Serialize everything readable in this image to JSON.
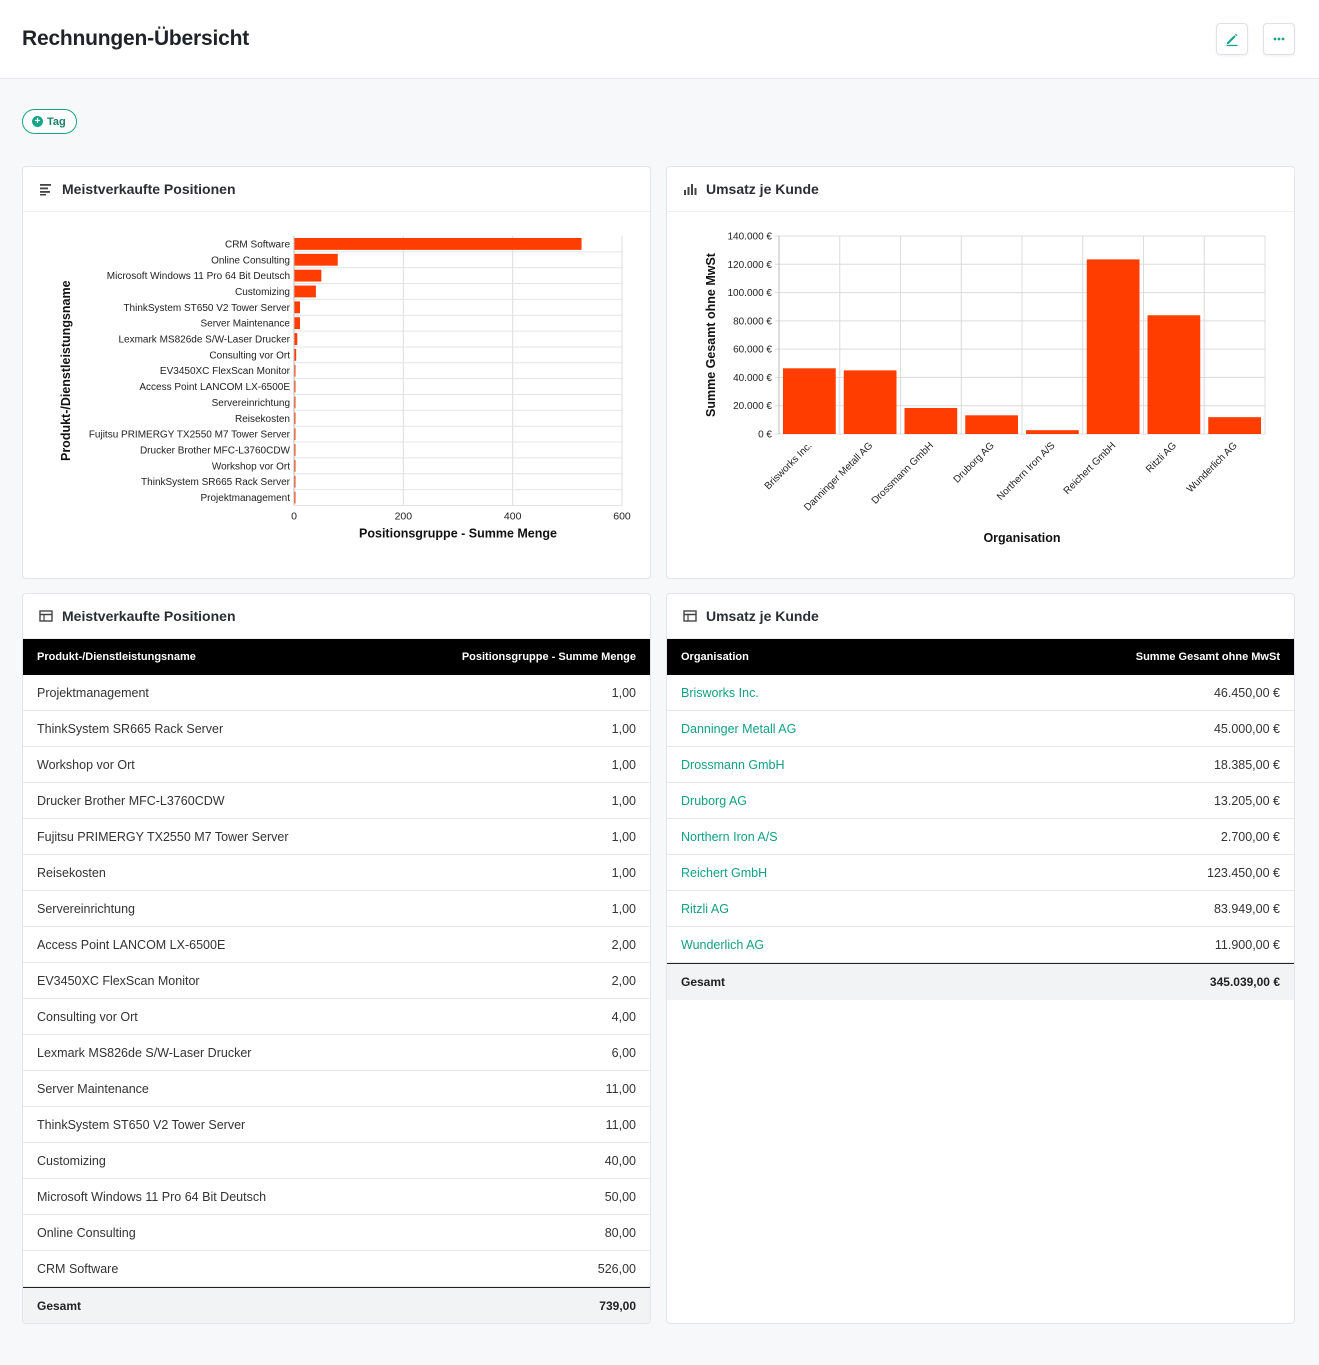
{
  "header": {
    "title": "Rechnungen-Übersicht",
    "edit_icon": "pencil-icon",
    "more_icon": "more-horizontal-icon"
  },
  "tag_button": {
    "label": "Tag",
    "icon": "plus-circle-icon"
  },
  "colors": {
    "accent": "#17a589",
    "bar": "#ff3d00"
  },
  "cards": {
    "top_products_chart": {
      "title": "Meistverkaufte Positionen",
      "icon": "horizontal-bars-icon"
    },
    "revenue_chart": {
      "title": "Umsatz je Kunde",
      "icon": "bar-chart-icon"
    },
    "top_products_table": {
      "title": "Meistverkaufte Positionen",
      "icon": "table-icon"
    },
    "revenue_table": {
      "title": "Umsatz je Kunde",
      "icon": "table-icon"
    }
  },
  "chart_data": [
    {
      "type": "bar",
      "orientation": "horizontal",
      "categories": [
        "CRM Software",
        "Online Consulting",
        "Microsoft Windows 11 Pro 64 Bit Deutsch",
        "Customizing",
        "ThinkSystem ST650 V2 Tower Server",
        "Server Maintenance",
        "Lexmark MS826de S/W-Laser Drucker",
        "Consulting vor Ort",
        "EV3450XC FlexScan Monitor",
        "Access Point LANCOM LX-6500E",
        "Servereinrichtung",
        "Reisekosten",
        "Fujitsu PRIMERGY TX2550 M7 Tower Server",
        "Drucker Brother MFC-L3760CDW",
        "Workshop vor Ort",
        "ThinkSystem SR665 Rack Server",
        "Projektmanagement"
      ],
      "values": [
        526,
        80,
        50,
        40,
        11,
        11,
        6,
        4,
        2,
        2,
        1,
        1,
        1,
        1,
        1,
        1,
        1
      ],
      "xlabel": "Positionsgruppe - Summe Menge",
      "ylabel": "Produkt-/Dienstleistungsname",
      "xlim": [
        0,
        600
      ],
      "xticks": [
        "0",
        "200",
        "400",
        "600"
      ],
      "grid": true,
      "legend": "none"
    },
    {
      "type": "bar",
      "orientation": "vertical",
      "categories": [
        "Brisworks Inc.",
        "Danninger Metall AG",
        "Drossmann GmbH",
        "Druborg AG",
        "Northern Iron A/S",
        "Reichert GmbH",
        "Ritzli AG",
        "Wunderlich AG"
      ],
      "values": [
        46450,
        45000,
        18385,
        13205,
        2700,
        123450,
        83949,
        11900
      ],
      "xlabel": "Organisation",
      "ylabel": "Summe Gesamt ohne MwSt",
      "ylim": [
        0,
        140000
      ],
      "yticks": [
        "0 €",
        "20.000 €",
        "40.000 €",
        "60.000 €",
        "80.000 €",
        "100.000 €",
        "120.000 €",
        "140.000 €"
      ],
      "grid": true,
      "legend": "none"
    }
  ],
  "products_table": {
    "col1": "Produkt-/Dienstleistungsname",
    "col2": "Positionsgruppe - Summe Menge",
    "rows": [
      {
        "name": "Projektmanagement",
        "value": "1,00"
      },
      {
        "name": "ThinkSystem SR665 Rack Server",
        "value": "1,00"
      },
      {
        "name": "Workshop vor Ort",
        "value": "1,00"
      },
      {
        "name": "Drucker Brother MFC-L3760CDW",
        "value": "1,00"
      },
      {
        "name": "Fujitsu PRIMERGY TX2550 M7 Tower Server",
        "value": "1,00"
      },
      {
        "name": "Reisekosten",
        "value": "1,00"
      },
      {
        "name": "Servereinrichtung",
        "value": "1,00"
      },
      {
        "name": "Access Point LANCOM LX-6500E",
        "value": "2,00"
      },
      {
        "name": "EV3450XC FlexScan Monitor",
        "value": "2,00"
      },
      {
        "name": "Consulting vor Ort",
        "value": "4,00"
      },
      {
        "name": "Lexmark MS826de S/W-Laser Drucker",
        "value": "6,00"
      },
      {
        "name": "Server Maintenance",
        "value": "11,00"
      },
      {
        "name": "ThinkSystem ST650 V2 Tower Server",
        "value": "11,00"
      },
      {
        "name": "Customizing",
        "value": "40,00"
      },
      {
        "name": "Microsoft Windows 11 Pro 64 Bit Deutsch",
        "value": "50,00"
      },
      {
        "name": "Online Consulting",
        "value": "80,00"
      },
      {
        "name": "CRM Software",
        "value": "526,00"
      }
    ],
    "total_label": "Gesamt",
    "total_value": "739,00"
  },
  "revenue_table": {
    "col1": "Organisation",
    "col2": "Summe Gesamt ohne MwSt",
    "rows": [
      {
        "name": "Brisworks Inc.",
        "value": "46.450,00 €"
      },
      {
        "name": "Danninger Metall AG",
        "value": "45.000,00 €"
      },
      {
        "name": "Drossmann GmbH",
        "value": "18.385,00 €"
      },
      {
        "name": "Druborg AG",
        "value": "13.205,00 €"
      },
      {
        "name": "Northern Iron A/S",
        "value": "2.700,00 €"
      },
      {
        "name": "Reichert GmbH",
        "value": "123.450,00 €"
      },
      {
        "name": "Ritzli AG",
        "value": "83.949,00 €"
      },
      {
        "name": "Wunderlich AG",
        "value": "11.900,00 €"
      }
    ],
    "total_label": "Gesamt",
    "total_value": "345.039,00 €"
  }
}
